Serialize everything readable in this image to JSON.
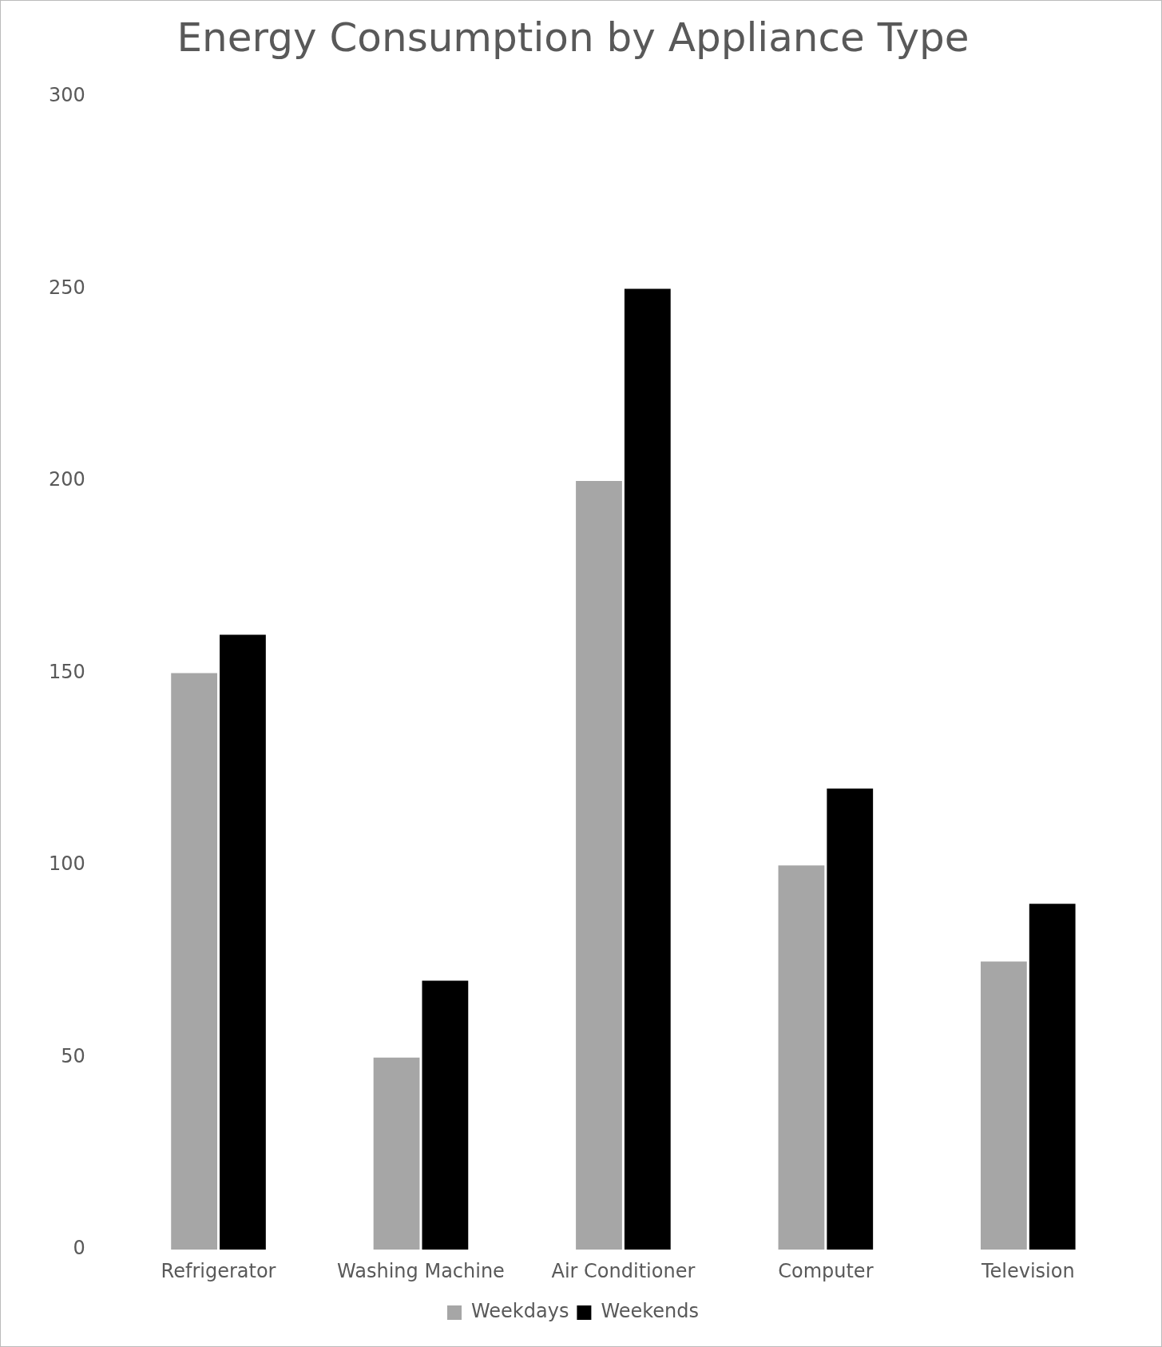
{
  "chart_data": {
    "type": "bar",
    "title": "Energy Consumption by Appliance Type",
    "categories": [
      "Refrigerator",
      "Washing Machine",
      "Air Conditioner",
      "Computer",
      "Television"
    ],
    "series": [
      {
        "name": "Weekdays",
        "color": "#a6a6a6",
        "values": [
          150,
          50,
          200,
          100,
          75
        ]
      },
      {
        "name": "Weekends",
        "color": "#000000",
        "values": [
          160,
          70,
          250,
          120,
          90
        ]
      }
    ],
    "ylim": [
      0,
      300
    ],
    "yticks": [
      0,
      50,
      100,
      150,
      200,
      250,
      300
    ],
    "grid": false,
    "legend": "bottom"
  }
}
